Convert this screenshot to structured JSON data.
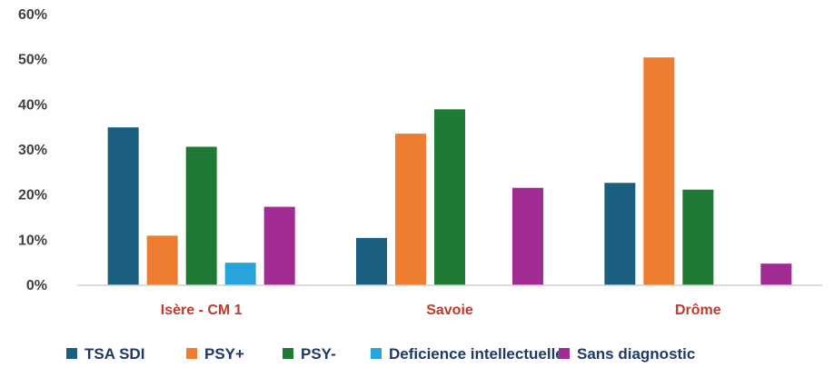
{
  "chart_data": {
    "type": "bar",
    "categories": [
      "Isère - CM 1",
      "Savoie",
      "Drôme"
    ],
    "series": [
      {
        "name": "TSA SDI",
        "color": "#1a5e80",
        "values": [
          35,
          10.5,
          22.7
        ]
      },
      {
        "name": "PSY+",
        "color": "#ed7d31",
        "values": [
          11,
          33.6,
          50.5
        ]
      },
      {
        "name": "PSY-",
        "color": "#1e7a34",
        "values": [
          30.7,
          39,
          21.2
        ]
      },
      {
        "name": "Deficience intellectuelle",
        "color": "#29a3dc",
        "values": [
          5,
          0,
          0
        ]
      },
      {
        "name": "Sans diagnostic",
        "color": "#a02b93",
        "values": [
          17.4,
          21.6,
          4.8
        ]
      }
    ],
    "yticks": [
      "0%",
      "10%",
      "20%",
      "30%",
      "40%",
      "50%",
      "60%"
    ],
    "ylim": [
      0,
      60
    ],
    "grid": false,
    "legend_position": "bottom"
  }
}
